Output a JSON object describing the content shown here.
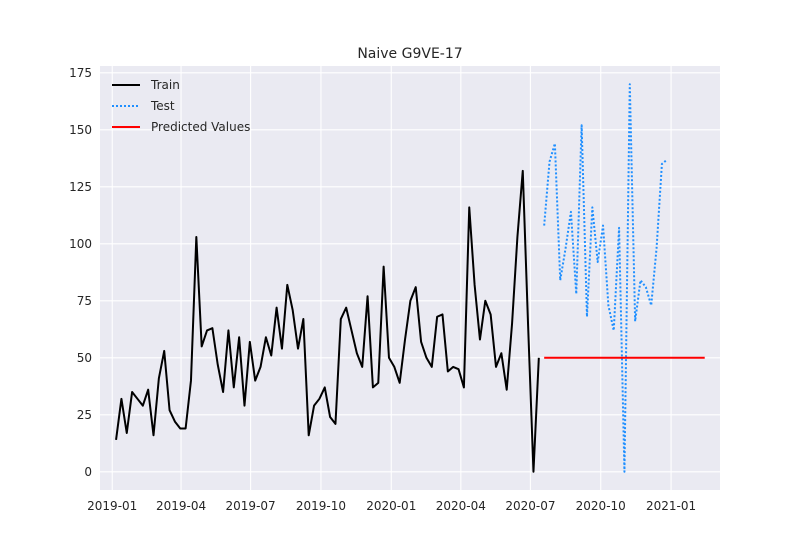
{
  "chart_data": {
    "type": "line",
    "title": "Naive G9VE-17",
    "xlabel": "",
    "ylabel": "",
    "xlim": [
      "2018-12-16",
      "2021-03-06"
    ],
    "ylim": [
      -8,
      178
    ],
    "grid": true,
    "legend_position": "top-left",
    "x_ticks": [
      "2019-01-01",
      "2019-04-01",
      "2019-07-01",
      "2019-10-01",
      "2020-01-01",
      "2020-04-01",
      "2020-07-01",
      "2020-10-01",
      "2021-01-01"
    ],
    "x_tick_labels": [
      "2019-01",
      "2019-04",
      "2019-07",
      "2019-10",
      "2020-01",
      "2020-04",
      "2020-07",
      "2020-10",
      "2021-01"
    ],
    "y_ticks": [
      0,
      25,
      50,
      75,
      100,
      125,
      150,
      175
    ],
    "y_tick_labels": [
      "0",
      "25",
      "50",
      "75",
      "100",
      "125",
      "150",
      "175"
    ],
    "series": [
      {
        "name": "Train",
        "color": "#000000",
        "style": "solid",
        "x": [
          "2019-01-06",
          "2019-01-13",
          "2019-01-20",
          "2019-01-27",
          "2019-02-03",
          "2019-02-10",
          "2019-02-17",
          "2019-02-24",
          "2019-03-03",
          "2019-03-10",
          "2019-03-17",
          "2019-03-24",
          "2019-03-31",
          "2019-04-07",
          "2019-04-14",
          "2019-04-21",
          "2019-04-28",
          "2019-05-05",
          "2019-05-12",
          "2019-05-19",
          "2019-05-26",
          "2019-06-02",
          "2019-06-09",
          "2019-06-16",
          "2019-06-23",
          "2019-06-30",
          "2019-07-07",
          "2019-07-14",
          "2019-07-21",
          "2019-07-28",
          "2019-08-04",
          "2019-08-11",
          "2019-08-18",
          "2019-08-25",
          "2019-09-01",
          "2019-09-08",
          "2019-09-15",
          "2019-09-22",
          "2019-09-29",
          "2019-10-06",
          "2019-10-13",
          "2019-10-20",
          "2019-10-27",
          "2019-11-03",
          "2019-11-10",
          "2019-11-17",
          "2019-11-24",
          "2019-12-01",
          "2019-12-08",
          "2019-12-15",
          "2019-12-22",
          "2019-12-29",
          "2020-01-05",
          "2020-01-12",
          "2020-01-19",
          "2020-01-26",
          "2020-02-02",
          "2020-02-09",
          "2020-02-16",
          "2020-02-23",
          "2020-03-01",
          "2020-03-08",
          "2020-03-15",
          "2020-03-22",
          "2020-03-29",
          "2020-04-05",
          "2020-04-12",
          "2020-04-19",
          "2020-04-26",
          "2020-05-03",
          "2020-05-10",
          "2020-05-17",
          "2020-05-24",
          "2020-05-31",
          "2020-06-07",
          "2020-06-14",
          "2020-06-21",
          "2020-06-28",
          "2020-07-05",
          "2020-07-12"
        ],
        "values": [
          14,
          32,
          17,
          35,
          32,
          29,
          36,
          16,
          41,
          53,
          27,
          22,
          19,
          19,
          40,
          103,
          55,
          62,
          63,
          47,
          35,
          62,
          37,
          59,
          29,
          57,
          40,
          46,
          59,
          51,
          72,
          54,
          82,
          71,
          54,
          67,
          16,
          29,
          32,
          37,
          24,
          21,
          67,
          72,
          62,
          52,
          46,
          77,
          37,
          39,
          90,
          50,
          46,
          39,
          58,
          75,
          81,
          57,
          50,
          46,
          68,
          69,
          44,
          46,
          45,
          37,
          116,
          82,
          58,
          75,
          69,
          46,
          52,
          36,
          65,
          103,
          132,
          64,
          0,
          50
        ]
      },
      {
        "name": "Test",
        "color": "#1f8fff",
        "style": "dotted",
        "x": [
          "2020-07-19",
          "2020-07-26",
          "2020-08-02",
          "2020-08-09",
          "2020-08-16",
          "2020-08-23",
          "2020-08-30",
          "2020-09-06",
          "2020-09-13",
          "2020-09-20",
          "2020-09-27",
          "2020-10-04",
          "2020-10-11",
          "2020-10-18",
          "2020-10-25",
          "2020-11-01",
          "2020-11-08",
          "2020-11-15",
          "2020-11-22",
          "2020-11-29",
          "2020-12-06",
          "2020-12-13",
          "2020-12-20",
          "2020-12-27"
        ],
        "values": [
          108,
          136,
          144,
          84,
          98,
          114,
          78,
          152,
          68,
          116,
          92,
          108,
          73,
          62,
          107,
          0,
          170,
          66,
          84,
          81,
          73,
          98,
          135,
          137
        ]
      },
      {
        "name": "Predicted Values",
        "color": "#ff0000",
        "style": "solid",
        "x": [
          "2020-07-19",
          "2021-02-14"
        ],
        "values": [
          50,
          50
        ]
      }
    ]
  }
}
